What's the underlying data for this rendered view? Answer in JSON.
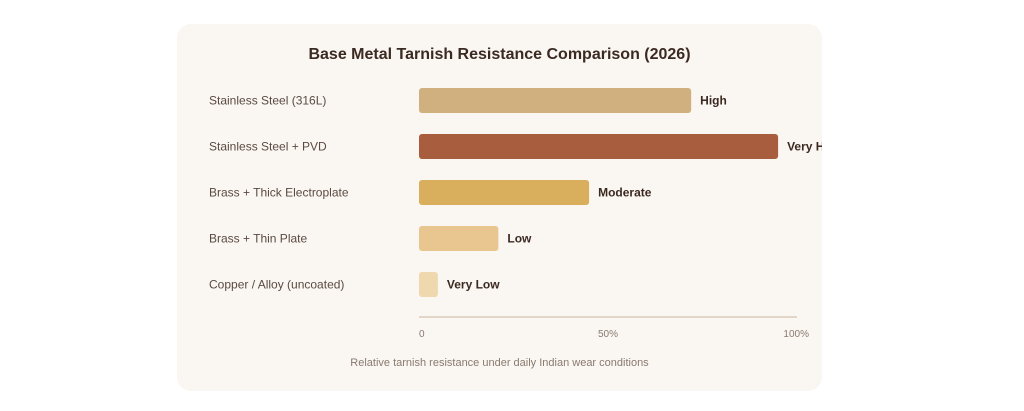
{
  "chart_data": {
    "type": "bar",
    "orientation": "horizontal",
    "title": "Base Metal Tarnish Resistance Comparison (2026)",
    "caption": "Relative tarnish resistance under daily Indian wear conditions",
    "categories": [
      "Stainless Steel (316L)",
      "Stainless Steel + PVD",
      "Brass + Thick Electroplate",
      "Brass + Thin Plate",
      "Copper / Alloy (uncoated)"
    ],
    "values": [
      72,
      95,
      45,
      21,
      5
    ],
    "value_labels": [
      "High",
      "Very High",
      "Moderate",
      "Low",
      "Very Low"
    ],
    "colors": [
      "#cfb07e",
      "#a85e3e",
      "#d9ae5c",
      "#e9c690",
      "#efd8ad"
    ],
    "xlim": [
      0,
      100
    ],
    "x_ticks": [
      "0",
      "50%",
      "100%"
    ],
    "grid": false
  }
}
